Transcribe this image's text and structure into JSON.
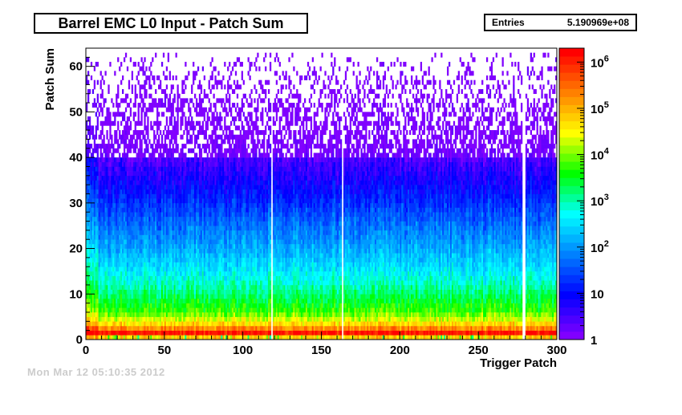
{
  "header": {
    "title": "Barrel EMC L0 Input - Patch Sum",
    "stats_label": "Entries",
    "stats_value": "5.190969e+08"
  },
  "footer": {
    "timestamp": "Mon Mar 12 05:10:35 2012"
  },
  "colors": {
    "palette": [
      "#8000ff",
      "#6600ff",
      "#4d00ff",
      "#3300ff",
      "#1a00ff",
      "#0000ff",
      "#0019ff",
      "#0033ff",
      "#004cff",
      "#0066ff",
      "#0080ff",
      "#0099ff",
      "#00b3ff",
      "#00ccff",
      "#00e6ff",
      "#00ffff",
      "#00ffcc",
      "#00ff99",
      "#00ff66",
      "#00ff33",
      "#00ff00",
      "#33ff00",
      "#66ff00",
      "#99ff00",
      "#ccff00",
      "#ffff00",
      "#ffe600",
      "#ffcc00",
      "#ffb300",
      "#ff9900",
      "#ff8000",
      "#ff6600",
      "#ff4d00",
      "#ff3300",
      "#ff1a00",
      "#ff0000"
    ]
  },
  "chart_data": {
    "type": "heatmap",
    "title": "Barrel EMC L0 Input - Patch Sum",
    "xlabel": "Trigger Patch",
    "ylabel": "Patch Sum",
    "xlim": [
      0,
      300
    ],
    "ylim": [
      0,
      64
    ],
    "x_ticks": [
      "0",
      "50",
      "100",
      "150",
      "200",
      "250",
      "300"
    ],
    "y_ticks": [
      "0",
      "10",
      "20",
      "30",
      "40",
      "50",
      "60"
    ],
    "z_scale": "log",
    "z_range": [
      1,
      2000000
    ],
    "z_ticks": [
      {
        "base": "1",
        "exp": ""
      },
      {
        "base": "10",
        "exp": ""
      },
      {
        "base": "10",
        "exp": "2"
      },
      {
        "base": "10",
        "exp": "3"
      },
      {
        "base": "10",
        "exp": "4"
      },
      {
        "base": "10",
        "exp": "5"
      },
      {
        "base": "10",
        "exp": "6"
      }
    ],
    "z_tick_values": [
      1,
      10,
      100,
      1000,
      10000,
      100000,
      1000000
    ],
    "empty_columns": [
      118,
      163,
      278,
      279
    ],
    "profile_log10_by_patch_sum": [
      {
        "y": 0,
        "log10": 4.8
      },
      {
        "y": 1,
        "log10": 6.1
      },
      {
        "y": 2,
        "log10": 5.3
      },
      {
        "y": 3,
        "log10": 4.7
      },
      {
        "y": 4,
        "log10": 4.3
      },
      {
        "y": 5,
        "log10": 4.0
      },
      {
        "y": 6,
        "log10": 3.75
      },
      {
        "y": 8,
        "log10": 3.45
      },
      {
        "y": 10,
        "log10": 3.15
      },
      {
        "y": 12,
        "log10": 2.9
      },
      {
        "y": 15,
        "log10": 2.55
      },
      {
        "y": 20,
        "log10": 2.1
      },
      {
        "y": 25,
        "log10": 1.7
      },
      {
        "y": 30,
        "log10": 1.25
      },
      {
        "y": 35,
        "log10": 0.8
      },
      {
        "y": 40,
        "log10": 0.4
      },
      {
        "y": 45,
        "log10": 0.15
      },
      {
        "y": 62,
        "log10": 0.0
      }
    ]
  }
}
